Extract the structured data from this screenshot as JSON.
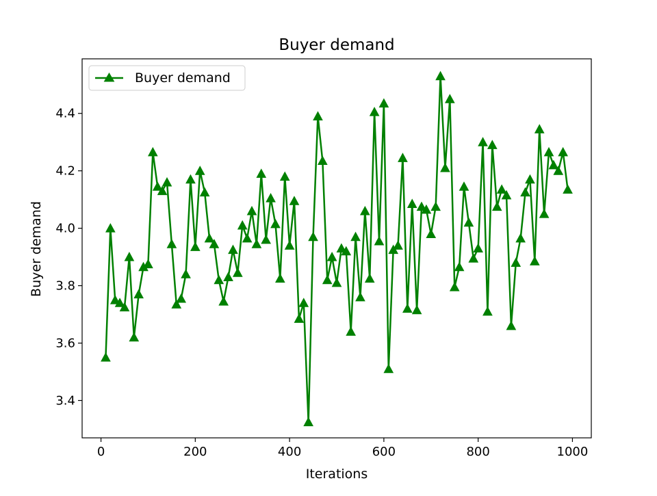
{
  "chart_data": {
    "type": "line",
    "title": "Buyer demand",
    "xlabel": "Iterations",
    "ylabel": "Buyer demand",
    "xlim": [
      -40,
      1040
    ],
    "ylim": [
      3.27,
      4.59
    ],
    "xticks": [
      0,
      200,
      400,
      600,
      800,
      1000
    ],
    "xtick_labels": [
      "0",
      "200",
      "400",
      "600",
      "800",
      "1000"
    ],
    "yticks": [
      3.4,
      3.6,
      3.8,
      4.0,
      4.2,
      4.4
    ],
    "ytick_labels": [
      "3.4",
      "3.6",
      "3.8",
      "4.0",
      "4.2",
      "4.4"
    ],
    "grid": false,
    "legend_position": "top-left",
    "series": [
      {
        "name": "Buyer demand",
        "color": "#008000",
        "marker": "triangle-up",
        "x": [
          10,
          20,
          30,
          40,
          50,
          60,
          70,
          80,
          90,
          100,
          110,
          120,
          130,
          140,
          150,
          160,
          170,
          180,
          190,
          200,
          210,
          220,
          230,
          240,
          250,
          260,
          270,
          280,
          290,
          300,
          310,
          320,
          330,
          340,
          350,
          360,
          370,
          380,
          390,
          400,
          410,
          420,
          430,
          440,
          450,
          460,
          470,
          480,
          490,
          500,
          510,
          520,
          530,
          540,
          550,
          560,
          570,
          580,
          590,
          600,
          610,
          620,
          630,
          640,
          650,
          660,
          670,
          680,
          690,
          700,
          710,
          720,
          730,
          740,
          750,
          760,
          770,
          780,
          790,
          800,
          810,
          820,
          830,
          840,
          850,
          860,
          870,
          880,
          890,
          900,
          910,
          920,
          930,
          940,
          950,
          960,
          970,
          980,
          990
        ],
        "y": [
          3.55,
          4.0,
          3.75,
          3.74,
          3.725,
          3.9,
          3.62,
          3.77,
          3.865,
          3.875,
          4.265,
          4.145,
          4.13,
          4.16,
          3.945,
          3.735,
          3.755,
          3.84,
          4.17,
          3.935,
          4.2,
          4.125,
          3.965,
          3.945,
          3.82,
          3.745,
          3.83,
          3.925,
          3.845,
          4.01,
          3.965,
          4.06,
          3.945,
          4.19,
          3.96,
          4.105,
          4.015,
          3.825,
          4.18,
          3.94,
          4.095,
          3.685,
          3.74,
          3.325,
          3.97,
          4.39,
          4.235,
          3.82,
          3.9,
          3.81,
          3.93,
          3.92,
          3.64,
          3.97,
          3.76,
          4.06,
          3.825,
          4.405,
          3.955,
          4.435,
          3.51,
          3.925,
          3.94,
          4.245,
          3.72,
          4.085,
          3.715,
          4.075,
          4.065,
          3.98,
          4.075,
          4.53,
          4.21,
          4.45,
          3.795,
          3.865,
          4.145,
          4.02,
          3.895,
          3.93,
          4.3,
          3.71,
          4.29,
          4.075,
          4.135,
          4.115,
          3.66,
          3.88,
          3.965,
          4.125,
          4.17,
          3.885,
          4.345,
          4.05,
          4.265,
          4.22,
          4.2,
          4.265,
          4.135
        ]
      }
    ]
  }
}
